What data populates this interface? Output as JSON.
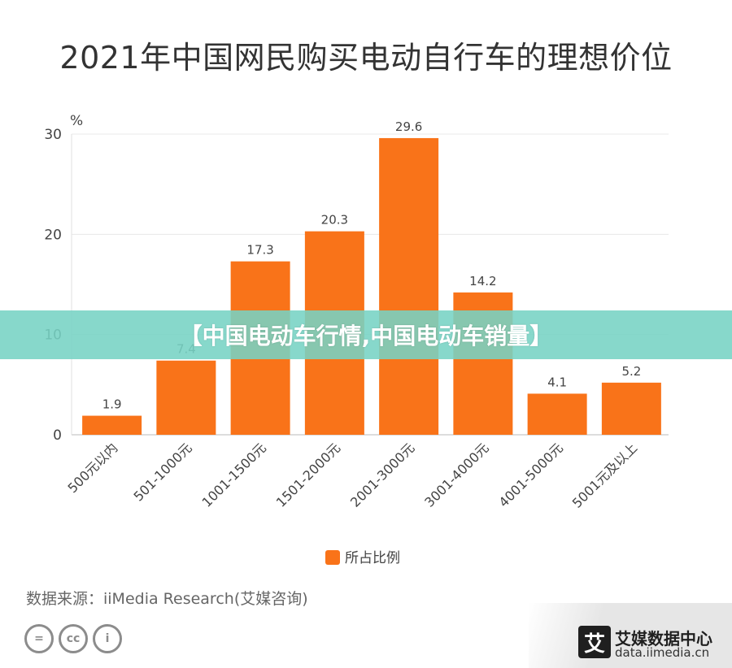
{
  "chart_data": {
    "type": "bar",
    "title": "2021年中国网民购买电动自行车的理想价位",
    "ylabel": "%",
    "categories": [
      "500元以内",
      "501-1000元",
      "1001-1500元",
      "1501-2000元",
      "2001-3000元",
      "3001-4000元",
      "4001-5000元",
      "5001元及以上"
    ],
    "series": [
      {
        "name": "所占比例",
        "values": [
          1.9,
          7.4,
          17.3,
          20.3,
          29.6,
          14.2,
          4.1,
          5.2
        ]
      }
    ],
    "data_labels": [
      "1.9",
      "7.4",
      "17.3",
      "20.3",
      "29.6",
      "14.2",
      "4.1",
      "5.2"
    ],
    "ylim": [
      0,
      30
    ],
    "yticks": [
      0,
      10,
      20,
      30
    ],
    "grid": true,
    "legend": "bottom-center",
    "bar_color": "#f97319"
  },
  "overlay_banner": "【中国电动车行情,中国电动车销量】",
  "source_text": "数据来源：iiMedia Research(艾媒咨询)",
  "license_icons": [
    "=",
    "cc",
    "i"
  ],
  "brand": {
    "logo_char": "艾",
    "name": "艾媒数据中心",
    "url": "data.iimedia.cn"
  }
}
